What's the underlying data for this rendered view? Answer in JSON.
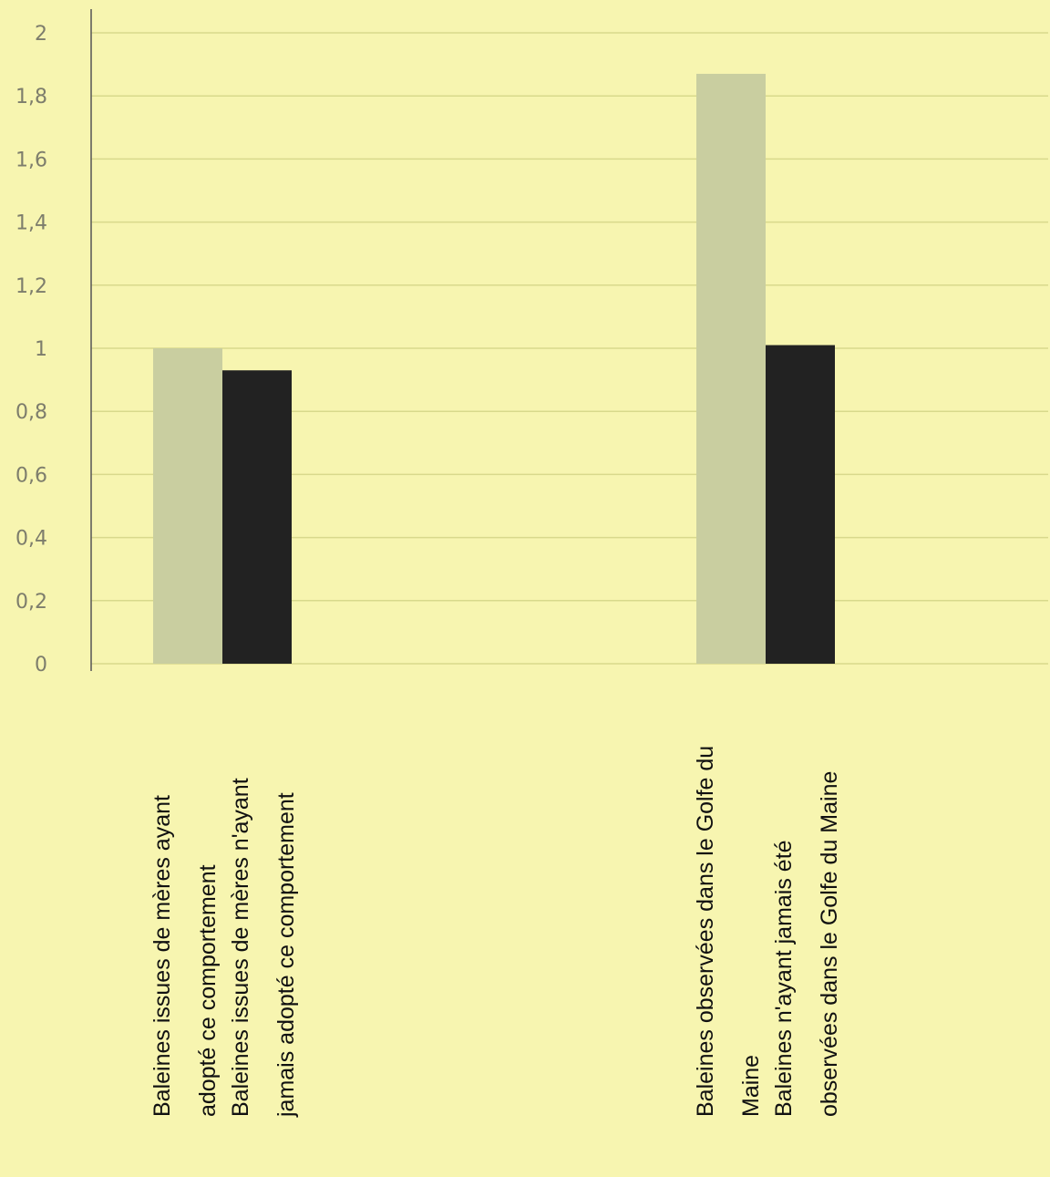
{
  "chart_data": {
    "type": "bar",
    "title": "",
    "xlabel": "",
    "ylabel": "",
    "ylim": [
      0,
      2
    ],
    "yticks": [
      "0",
      "0,2",
      "0,4",
      "0,6",
      "0,8",
      "1",
      "1,2",
      "1,4",
      "1,6",
      "1,8",
      "2"
    ],
    "grid": true,
    "legend": "none",
    "groups": [
      {
        "bars": [
          {
            "label": [
              "Baleines issues de mères ayant",
              "adopté ce comportement"
            ],
            "value": 1.0,
            "color": "#c9cea0"
          },
          {
            "label": [
              "Baleines issues de mères n'ayant",
              "jamais adopté ce comportement"
            ],
            "value": 0.93,
            "color": "#222222"
          }
        ]
      },
      {
        "bars": [
          {
            "label": [
              "Baleines observées dans le Golfe du",
              "Maine"
            ],
            "value": 1.87,
            "color": "#c9cea0"
          },
          {
            "label": [
              "Baleines n'ayant jamais été",
              "observées dans le Golfe du Maine"
            ],
            "value": 1.01,
            "color": "#222222"
          }
        ]
      }
    ],
    "colors": {
      "background": "#f7f5b0",
      "grid": "#d8d98c",
      "axis": "#555555"
    }
  }
}
